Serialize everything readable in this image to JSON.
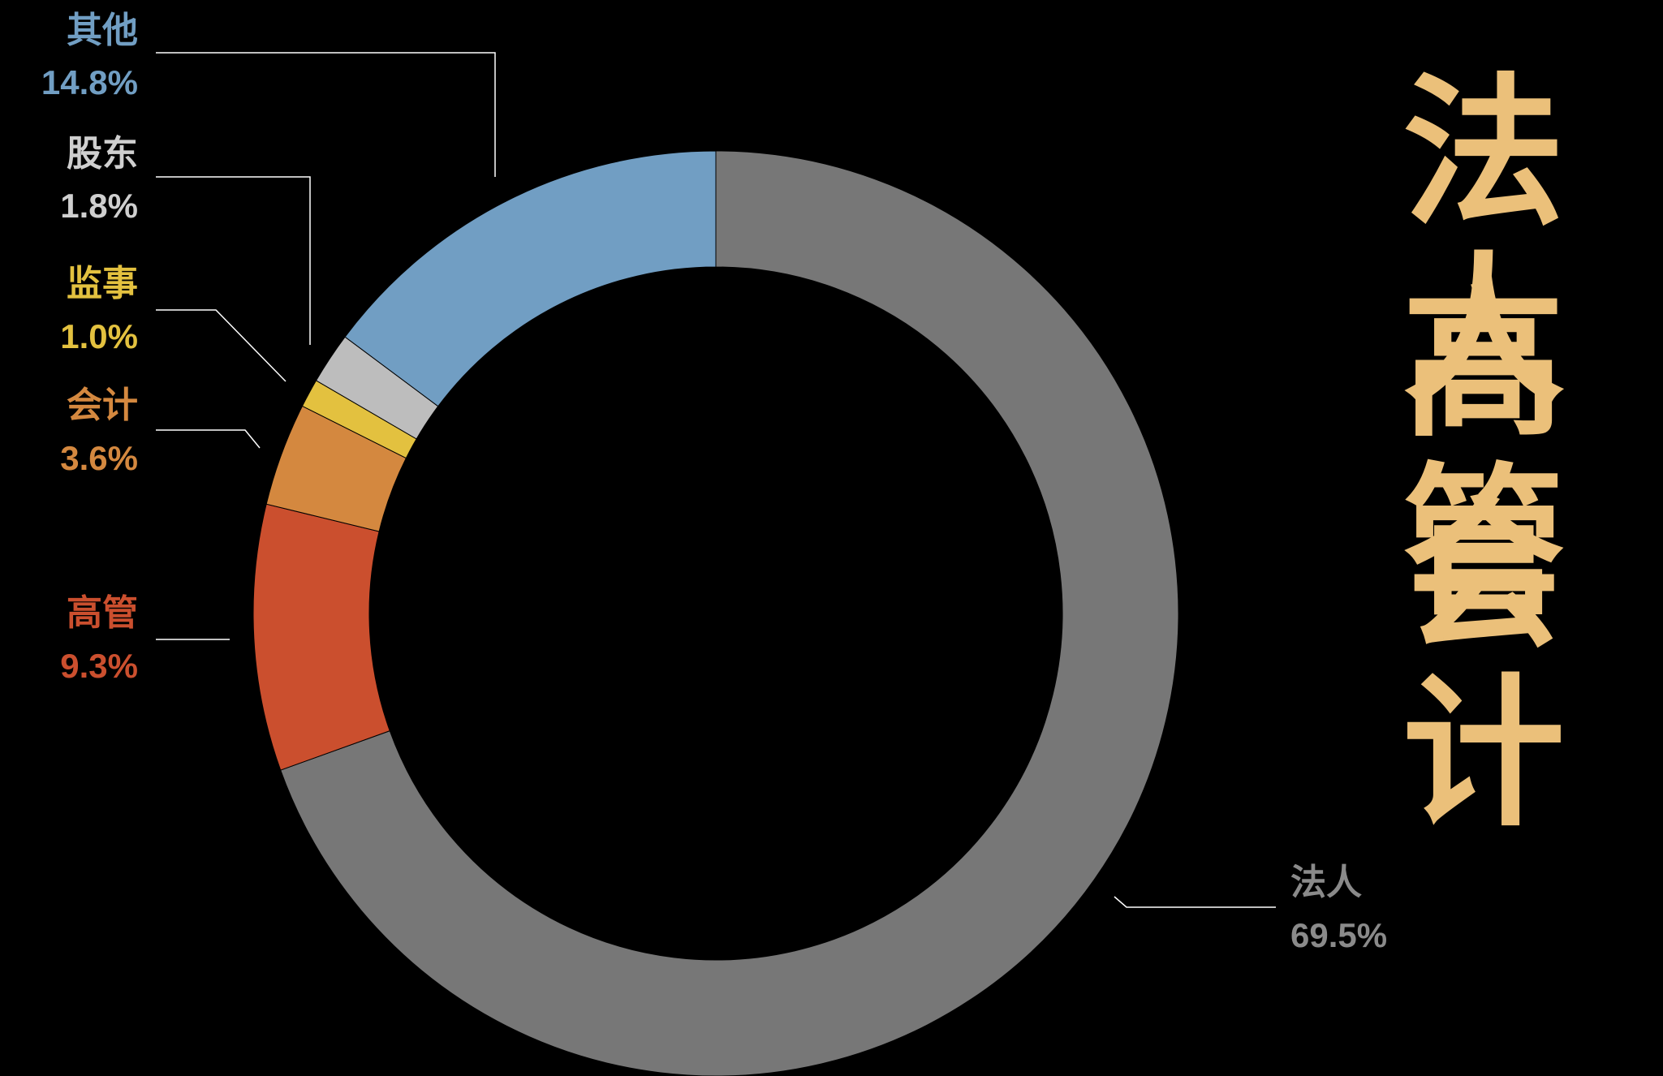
{
  "chart_data": {
    "type": "pie",
    "style": "donut",
    "title": "法人\n高管\n会计",
    "title_lines": [
      "法人",
      "高管",
      "会计"
    ],
    "title_color": "#EBC07A",
    "background": "#000000",
    "slices": [
      {
        "name": "法人",
        "value": 69.5,
        "label": "69.5%",
        "color": "#777777"
      },
      {
        "name": "高管",
        "value": 9.3,
        "label": "9.3%",
        "color": "#CB4F2E"
      },
      {
        "name": "会计",
        "value": 3.6,
        "label": "3.6%",
        "color": "#D4883F"
      },
      {
        "name": "监事",
        "value": 1.0,
        "label": "1.0%",
        "color": "#E3C13F"
      },
      {
        "name": "股东",
        "value": 1.8,
        "label": "1.8%",
        "color": "#BDBDBD"
      },
      {
        "name": "其他",
        "value": 14.8,
        "label": "14.8%",
        "color": "#719EC3"
      }
    ],
    "label_colors": {
      "法人": "#8A8A8A",
      "高管": "#CB4F2E",
      "会计": "#D4883F",
      "监事": "#E3C13F",
      "股东": "#CFCFCF",
      "其他": "#719EC3"
    },
    "legend": "none",
    "start_angle": "top",
    "direction": "clockwise"
  }
}
